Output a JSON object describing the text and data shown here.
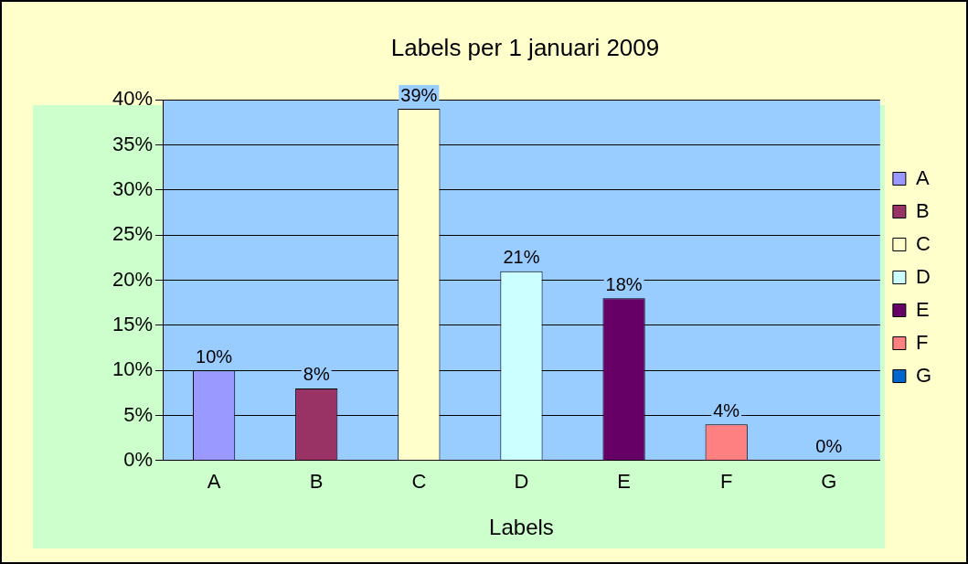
{
  "chart_data": {
    "type": "bar",
    "title": "Labels per 1 januari 2009",
    "xlabel": "Labels",
    "categories": [
      "A",
      "B",
      "C",
      "D",
      "E",
      "F",
      "G"
    ],
    "series": [
      {
        "name": "A",
        "color": "#9999ff",
        "values": [
          10,
          null,
          null,
          null,
          null,
          null,
          null
        ],
        "value_labels": [
          "10%",
          null,
          null,
          null,
          null,
          null,
          null
        ]
      },
      {
        "name": "B",
        "color": "#993366",
        "values": [
          null,
          8,
          null,
          null,
          null,
          null,
          null
        ],
        "value_labels": [
          null,
          "8%",
          null,
          null,
          null,
          null,
          null
        ]
      },
      {
        "name": "C",
        "color": "#ffffcc",
        "values": [
          null,
          null,
          39,
          null,
          null,
          null,
          null
        ],
        "value_labels": [
          null,
          null,
          "39%",
          null,
          null,
          null,
          null
        ]
      },
      {
        "name": "D",
        "color": "#ccffff",
        "values": [
          null,
          null,
          null,
          21,
          null,
          null,
          null
        ],
        "value_labels": [
          null,
          null,
          null,
          "21%",
          null,
          null,
          null
        ]
      },
      {
        "name": "E",
        "color": "#660066",
        "values": [
          null,
          null,
          null,
          null,
          18,
          null,
          null
        ],
        "value_labels": [
          null,
          null,
          null,
          null,
          "18%",
          null,
          null
        ]
      },
      {
        "name": "F",
        "color": "#ff8080",
        "values": [
          null,
          null,
          null,
          null,
          null,
          4,
          null
        ],
        "value_labels": [
          null,
          null,
          null,
          null,
          null,
          "4%",
          null
        ]
      },
      {
        "name": "G",
        "color": "#0066cc",
        "values": [
          null,
          null,
          null,
          null,
          null,
          null,
          0
        ],
        "value_labels": [
          null,
          null,
          null,
          null,
          null,
          null,
          "0%"
        ]
      }
    ],
    "ylim": [
      0,
      40
    ],
    "yticks": [
      {
        "value": 0,
        "label": "0%"
      },
      {
        "value": 5,
        "label": "5%"
      },
      {
        "value": 10,
        "label": "10%"
      },
      {
        "value": 15,
        "label": "15%"
      },
      {
        "value": 20,
        "label": "20%"
      },
      {
        "value": 25,
        "label": "25%"
      },
      {
        "value": 30,
        "label": "30%"
      },
      {
        "value": 35,
        "label": "35%"
      },
      {
        "value": 40,
        "label": "40%"
      }
    ],
    "grid": "y",
    "legend": "right"
  }
}
